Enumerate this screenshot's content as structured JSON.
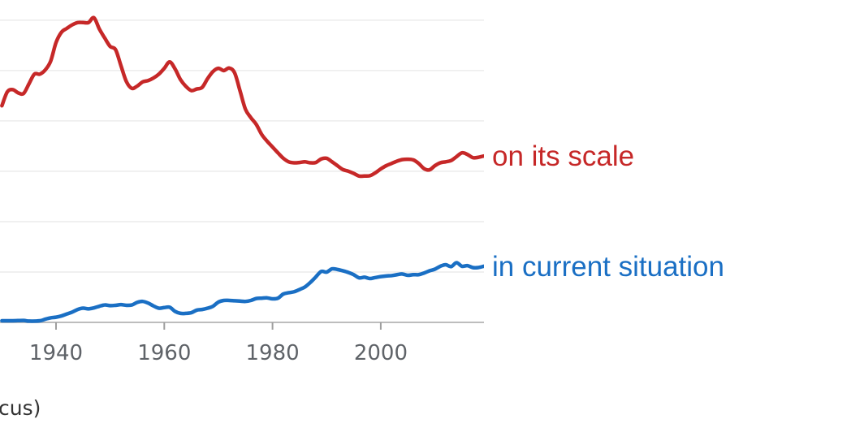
{
  "chart_data": {
    "type": "line",
    "title": "",
    "xlabel": "",
    "ylabel": "",
    "xlim": [
      1930,
      2019
    ],
    "ylim": [
      0,
      100
    ],
    "x_ticks": [
      1940,
      1960,
      1980,
      2000
    ],
    "grid": true,
    "legend": "inline-right",
    "series": [
      {
        "name": "on its scale",
        "color": "#c62828",
        "points": [
          [
            1930,
            67.2
          ],
          [
            1931,
            71.5
          ],
          [
            1932,
            72.2
          ],
          [
            1933,
            71.2
          ],
          [
            1934,
            71.0
          ],
          [
            1935,
            74.0
          ],
          [
            1936,
            77.0
          ],
          [
            1937,
            77.0
          ],
          [
            1938,
            78.3
          ],
          [
            1939,
            81.0
          ],
          [
            1940,
            86.8
          ],
          [
            1941,
            90.0
          ],
          [
            1942,
            91.2
          ],
          [
            1943,
            92.3
          ],
          [
            1944,
            93.0
          ],
          [
            1945,
            93.0
          ],
          [
            1946,
            93.0
          ],
          [
            1947,
            94.5
          ],
          [
            1948,
            91.0
          ],
          [
            1949,
            88.2
          ],
          [
            1950,
            85.6
          ],
          [
            1951,
            84.6
          ],
          [
            1952,
            79.6
          ],
          [
            1953,
            74.7
          ],
          [
            1954,
            72.6
          ],
          [
            1955,
            73.3
          ],
          [
            1956,
            74.6
          ],
          [
            1957,
            75.0
          ],
          [
            1958,
            75.8
          ],
          [
            1959,
            77.0
          ],
          [
            1960,
            78.8
          ],
          [
            1961,
            80.8
          ],
          [
            1962,
            78.6
          ],
          [
            1963,
            75.3
          ],
          [
            1964,
            73.2
          ],
          [
            1965,
            71.9
          ],
          [
            1966,
            72.4
          ],
          [
            1967,
            72.9
          ],
          [
            1968,
            75.6
          ],
          [
            1969,
            77.8
          ],
          [
            1970,
            78.8
          ],
          [
            1971,
            78.1
          ],
          [
            1972,
            78.9
          ],
          [
            1973,
            77.4
          ],
          [
            1974,
            71.8
          ],
          [
            1975,
            66.1
          ],
          [
            1976,
            63.5
          ],
          [
            1977,
            61.4
          ],
          [
            1978,
            58.3
          ],
          [
            1979,
            56.2
          ],
          [
            1980,
            54.4
          ],
          [
            1981,
            52.6
          ],
          [
            1982,
            50.9
          ],
          [
            1983,
            49.8
          ],
          [
            1984,
            49.5
          ],
          [
            1985,
            49.6
          ],
          [
            1986,
            49.8
          ],
          [
            1987,
            49.5
          ],
          [
            1988,
            49.6
          ],
          [
            1989,
            50.7
          ],
          [
            1990,
            50.9
          ],
          [
            1991,
            49.8
          ],
          [
            1992,
            48.6
          ],
          [
            1993,
            47.4
          ],
          [
            1994,
            46.9
          ],
          [
            1995,
            46.2
          ],
          [
            1996,
            45.4
          ],
          [
            1997,
            45.4
          ],
          [
            1998,
            45.5
          ],
          [
            1999,
            46.4
          ],
          [
            2000,
            47.6
          ],
          [
            2001,
            48.6
          ],
          [
            2002,
            49.3
          ],
          [
            2003,
            50.0
          ],
          [
            2004,
            50.5
          ],
          [
            2005,
            50.6
          ],
          [
            2006,
            50.4
          ],
          [
            2007,
            49.3
          ],
          [
            2008,
            47.7
          ],
          [
            2009,
            47.3
          ],
          [
            2010,
            48.6
          ],
          [
            2011,
            49.5
          ],
          [
            2012,
            49.8
          ],
          [
            2013,
            50.2
          ],
          [
            2014,
            51.4
          ],
          [
            2015,
            52.6
          ],
          [
            2016,
            52.1
          ],
          [
            2017,
            51.1
          ],
          [
            2018,
            51.2
          ],
          [
            2019,
            51.6
          ]
        ]
      },
      {
        "name": "in current situation",
        "color": "#1a6fc4",
        "points": [
          [
            1930,
            0.5
          ],
          [
            1932,
            0.5
          ],
          [
            1934,
            0.6
          ],
          [
            1935,
            0.4
          ],
          [
            1937,
            0.5
          ],
          [
            1938,
            1.0
          ],
          [
            1939,
            1.4
          ],
          [
            1940,
            1.6
          ],
          [
            1941,
            2.0
          ],
          [
            1942,
            2.6
          ],
          [
            1943,
            3.2
          ],
          [
            1944,
            4.0
          ],
          [
            1945,
            4.4
          ],
          [
            1946,
            4.2
          ],
          [
            1947,
            4.5
          ],
          [
            1948,
            5.0
          ],
          [
            1949,
            5.4
          ],
          [
            1950,
            5.2
          ],
          [
            1951,
            5.3
          ],
          [
            1952,
            5.5
          ],
          [
            1953,
            5.3
          ],
          [
            1954,
            5.4
          ],
          [
            1955,
            6.2
          ],
          [
            1956,
            6.5
          ],
          [
            1957,
            6.0
          ],
          [
            1958,
            5.1
          ],
          [
            1959,
            4.4
          ],
          [
            1960,
            4.6
          ],
          [
            1961,
            4.7
          ],
          [
            1962,
            3.4
          ],
          [
            1963,
            2.8
          ],
          [
            1964,
            2.8
          ],
          [
            1965,
            3.0
          ],
          [
            1966,
            3.8
          ],
          [
            1967,
            4.0
          ],
          [
            1968,
            4.4
          ],
          [
            1969,
            5.0
          ],
          [
            1970,
            6.3
          ],
          [
            1971,
            6.8
          ],
          [
            1972,
            6.8
          ],
          [
            1973,
            6.7
          ],
          [
            1974,
            6.6
          ],
          [
            1975,
            6.5
          ],
          [
            1976,
            6.8
          ],
          [
            1977,
            7.4
          ],
          [
            1978,
            7.5
          ],
          [
            1979,
            7.6
          ],
          [
            1980,
            7.3
          ],
          [
            1981,
            7.5
          ],
          [
            1982,
            8.8
          ],
          [
            1983,
            9.2
          ],
          [
            1984,
            9.5
          ],
          [
            1985,
            10.2
          ],
          [
            1986,
            11.0
          ],
          [
            1987,
            12.4
          ],
          [
            1988,
            14.1
          ],
          [
            1989,
            15.8
          ],
          [
            1990,
            15.6
          ],
          [
            1991,
            16.6
          ],
          [
            1992,
            16.4
          ],
          [
            1993,
            16.0
          ],
          [
            1994,
            15.5
          ],
          [
            1995,
            14.8
          ],
          [
            1996,
            13.8
          ],
          [
            1997,
            14.0
          ],
          [
            1998,
            13.6
          ],
          [
            1999,
            13.9
          ],
          [
            2000,
            14.2
          ],
          [
            2001,
            14.4
          ],
          [
            2002,
            14.5
          ],
          [
            2003,
            14.8
          ],
          [
            2004,
            15.0
          ],
          [
            2005,
            14.6
          ],
          [
            2006,
            14.8
          ],
          [
            2007,
            14.8
          ],
          [
            2008,
            15.3
          ],
          [
            2009,
            16.0
          ],
          [
            2010,
            16.5
          ],
          [
            2011,
            17.4
          ],
          [
            2012,
            17.9
          ],
          [
            2013,
            17.3
          ],
          [
            2014,
            18.5
          ],
          [
            2015,
            17.4
          ],
          [
            2016,
            17.6
          ],
          [
            2017,
            17.0
          ],
          [
            2018,
            17.0
          ],
          [
            2019,
            17.4
          ]
        ]
      }
    ]
  },
  "footer": {
    "text": "cus)"
  }
}
